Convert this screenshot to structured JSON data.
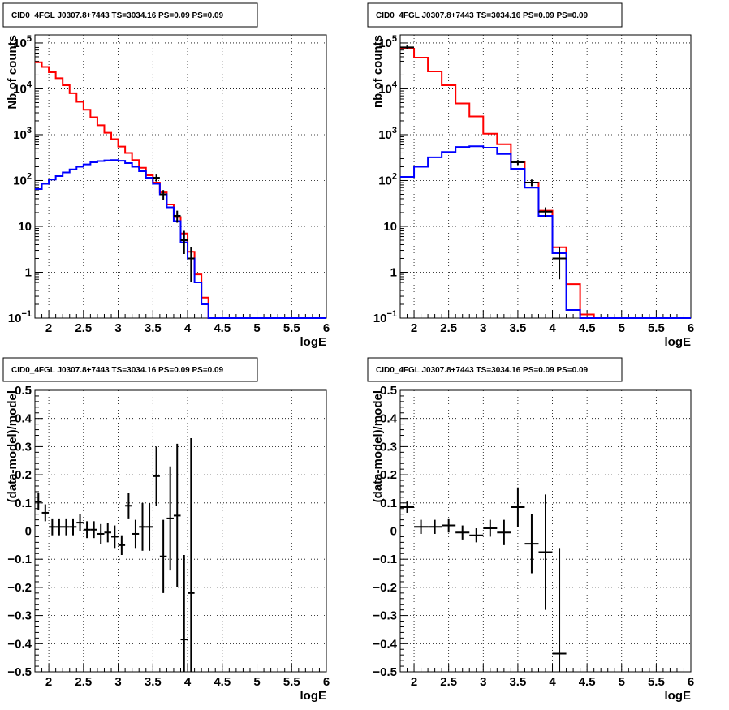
{
  "chart_data": [
    {
      "type": "line",
      "title": "CID0_4FGL J0307.8+7443 TS=3034.16 PS=0.09 PS=0.09",
      "xlabel": "logE",
      "ylabel": "Nb of counts",
      "xlim": [
        1.8,
        6.0
      ],
      "ylim": [
        0.1,
        150000
      ],
      "yscale": "log",
      "grid": true,
      "x_ticks": [
        "2",
        "2.5",
        "3",
        "3.5",
        "4",
        "4.5",
        "5",
        "5.5",
        "6"
      ],
      "y_ticks": [
        {
          "v": 0.1,
          "base": "10",
          "exp": "−1"
        },
        {
          "v": 1,
          "label": "1"
        },
        {
          "v": 10,
          "label": "10"
        },
        {
          "v": 100,
          "base": "10",
          "exp": "2"
        },
        {
          "v": 1000,
          "base": "10",
          "exp": "3"
        },
        {
          "v": 10000,
          "base": "10",
          "exp": "4"
        },
        {
          "v": 100000,
          "base": "10",
          "exp": "5"
        }
      ],
      "bin_edges": [
        1.8,
        1.9,
        2.0,
        2.1,
        2.2,
        2.3,
        2.4,
        2.5,
        2.6,
        2.7,
        2.8,
        2.9,
        3.0,
        3.1,
        3.2,
        3.3,
        3.4,
        3.5,
        3.6,
        3.7,
        3.8,
        3.9,
        4.0,
        4.1,
        4.2,
        4.3,
        4.4,
        4.5,
        4.6,
        4.7,
        4.8,
        4.9,
        5.0,
        5.1,
        5.2,
        5.3,
        5.4,
        5.5,
        5.6,
        5.7,
        5.8,
        5.9,
        6.0
      ],
      "series": [
        {
          "color": "#ff0000",
          "values": [
            38000,
            30000,
            23000,
            17000,
            12000,
            8000,
            5200,
            3500,
            2400,
            1600,
            1100,
            800,
            550,
            400,
            280,
            190,
            130,
            90,
            55,
            30,
            16,
            7,
            2.8,
            0.9,
            0.28,
            0.1,
            0.1,
            0.1,
            0.1,
            0.1,
            0.1,
            0.1,
            0.1,
            0.1,
            0.1,
            0.1,
            0.1,
            0.1,
            0.1,
            0.1,
            0.1,
            0.1
          ]
        },
        {
          "color": "#0000ff",
          "values": [
            65,
            85,
            105,
            125,
            150,
            175,
            200,
            225,
            250,
            265,
            275,
            280,
            270,
            240,
            200,
            160,
            115,
            85,
            50,
            26,
            13,
            4.5,
            2.0,
            0.6,
            0.2,
            0.1,
            0.1,
            0.1,
            0.1,
            0.1,
            0.1,
            0.1,
            0.1,
            0.1,
            0.1,
            0.1,
            0.1,
            0.1,
            0.1,
            0.1,
            0.1,
            0.1
          ]
        }
      ],
      "points": [
        {
          "x": 3.55,
          "y": 115,
          "lo": 95,
          "hi": 135
        },
        {
          "x": 3.65,
          "y": 50,
          "lo": 38,
          "hi": 62
        },
        {
          "x": 3.85,
          "y": 17,
          "lo": 12,
          "hi": 22
        },
        {
          "x": 3.95,
          "y": 5.0,
          "lo": 2.5,
          "hi": 8
        },
        {
          "x": 4.05,
          "y": 2.0,
          "lo": 0.6,
          "hi": 3.5
        }
      ]
    },
    {
      "type": "line",
      "title": "CID0_4FGL J0307.8+7443 TS=3034.16 PS=0.09 PS=0.09",
      "xlabel": "logE",
      "ylabel": "nb of counts",
      "xlim": [
        1.8,
        6.0
      ],
      "ylim": [
        0.1,
        150000
      ],
      "yscale": "log",
      "grid": true,
      "x_ticks": [
        "2",
        "2.5",
        "3",
        "3.5",
        "4",
        "4.5",
        "5",
        "5.5",
        "6"
      ],
      "y_ticks": [
        {
          "v": 0.1,
          "base": "10",
          "exp": "−1"
        },
        {
          "v": 1,
          "label": "1"
        },
        {
          "v": 10,
          "label": "10"
        },
        {
          "v": 100,
          "base": "10",
          "exp": "2"
        },
        {
          "v": 1000,
          "base": "10",
          "exp": "3"
        },
        {
          "v": 10000,
          "base": "10",
          "exp": "4"
        },
        {
          "v": 100000,
          "base": "10",
          "exp": "5"
        }
      ],
      "bin_edges": [
        1.8,
        2.0,
        2.2,
        2.4,
        2.6,
        2.8,
        3.0,
        3.2,
        3.4,
        3.6,
        3.8,
        4.0,
        4.2,
        4.4,
        4.6,
        4.8,
        5.0,
        5.2,
        5.4,
        5.6,
        5.8,
        6.0
      ],
      "series": [
        {
          "color": "#ff0000",
          "values": [
            75000,
            48000,
            24000,
            12000,
            4800,
            2500,
            1050,
            620,
            250,
            90,
            22,
            3.5,
            0.55,
            0.12,
            0.1,
            0.1,
            0.1,
            0.1,
            0.1,
            0.1,
            0.1
          ]
        },
        {
          "color": "#0000ff",
          "values": [
            120,
            200,
            320,
            420,
            540,
            560,
            520,
            380,
            180,
            70,
            17,
            2.6,
            0.15,
            0.1,
            0.1,
            0.1,
            0.1,
            0.1,
            0.1,
            0.1,
            0.1
          ]
        }
      ],
      "points": [
        {
          "x": 1.9,
          "y": 80000,
          "lo": 72000,
          "hi": 88000
        },
        {
          "x": 3.5,
          "y": 250,
          "lo": 220,
          "hi": 280
        },
        {
          "x": 3.7,
          "y": 90,
          "lo": 75,
          "hi": 105
        },
        {
          "x": 3.9,
          "y": 21,
          "lo": 16,
          "hi": 26
        },
        {
          "x": 4.1,
          "y": 2.0,
          "lo": 0.7,
          "hi": 3.5
        }
      ]
    },
    {
      "type": "scatter",
      "title": "CID0_4FGL J0307.8+7443 TS=3034.16 PS=0.09 PS=0.09",
      "xlabel": "logE",
      "ylabel": "(data-model)/model",
      "xlim": [
        1.8,
        6.0
      ],
      "ylim": [
        -0.5,
        0.5
      ],
      "yscale": "linear",
      "grid": true,
      "x_ticks": [
        "2",
        "2.5",
        "3",
        "3.5",
        "4",
        "4.5",
        "5",
        "5.5",
        "6"
      ],
      "y_ticks": [
        {
          "v": -0.5,
          "label": "−0.5"
        },
        {
          "v": -0.4,
          "label": "−0.4"
        },
        {
          "v": -0.3,
          "label": "−0.3"
        },
        {
          "v": -0.2,
          "label": "−0.2"
        },
        {
          "v": -0.1,
          "label": "−0.1"
        },
        {
          "v": 0,
          "label": "0"
        },
        {
          "v": 0.1,
          "label": "0.1"
        },
        {
          "v": 0.2,
          "label": "0.2"
        },
        {
          "v": 0.3,
          "label": "0.3"
        },
        {
          "v": 0.4,
          "label": "0.4"
        },
        {
          "v": 0.5,
          "label": "0.5"
        }
      ],
      "xerr": 0.05,
      "points": [
        {
          "x": 1.85,
          "y": 0.105,
          "e": 0.03
        },
        {
          "x": 1.95,
          "y": 0.065,
          "e": 0.03
        },
        {
          "x": 2.05,
          "y": 0.015,
          "e": 0.03
        },
        {
          "x": 2.15,
          "y": 0.015,
          "e": 0.03
        },
        {
          "x": 2.25,
          "y": 0.015,
          "e": 0.03
        },
        {
          "x": 2.35,
          "y": 0.015,
          "e": 0.03
        },
        {
          "x": 2.45,
          "y": 0.03,
          "e": 0.03
        },
        {
          "x": 2.55,
          "y": 0.005,
          "e": 0.03
        },
        {
          "x": 2.65,
          "y": 0.005,
          "e": 0.03
        },
        {
          "x": 2.75,
          "y": -0.01,
          "e": 0.035
        },
        {
          "x": 2.85,
          "y": -0.005,
          "e": 0.035
        },
        {
          "x": 2.95,
          "y": -0.02,
          "e": 0.04
        },
        {
          "x": 3.05,
          "y": -0.05,
          "e": 0.035
        },
        {
          "x": 3.15,
          "y": 0.09,
          "e": 0.045
        },
        {
          "x": 3.25,
          "y": -0.01,
          "e": 0.05
        },
        {
          "x": 3.35,
          "y": 0.015,
          "e": 0.085
        },
        {
          "x": 3.45,
          "y": 0.015,
          "e": 0.085
        },
        {
          "x": 3.55,
          "y": 0.195,
          "e": 0.105
        },
        {
          "x": 3.65,
          "y": -0.09,
          "e": 0.13
        },
        {
          "x": 3.75,
          "y": 0.045,
          "e": 0.185
        },
        {
          "x": 3.85,
          "y": 0.055,
          "e": 0.255
        },
        {
          "x": 3.95,
          "y": -0.385,
          "e": 0.3
        },
        {
          "x": 4.05,
          "y": -0.22,
          "e": 0.55
        }
      ]
    },
    {
      "type": "scatter",
      "title": "CID0_4FGL J0307.8+7443 TS=3034.16 PS=0.09 PS=0.09",
      "xlabel": "logE",
      "ylabel": "(data-model)/model",
      "xlim": [
        1.8,
        6.0
      ],
      "ylim": [
        -0.5,
        0.5
      ],
      "yscale": "linear",
      "grid": true,
      "x_ticks": [
        "2",
        "2.5",
        "3",
        "3.5",
        "4",
        "4.5",
        "5",
        "5.5",
        "6"
      ],
      "y_ticks": [
        {
          "v": -0.5,
          "label": "−0.5"
        },
        {
          "v": -0.4,
          "label": "−0.4"
        },
        {
          "v": -0.3,
          "label": "−0.3"
        },
        {
          "v": -0.2,
          "label": "−0.2"
        },
        {
          "v": -0.1,
          "label": "−0.1"
        },
        {
          "v": 0,
          "label": "0"
        },
        {
          "v": 0.1,
          "label": "0.1"
        },
        {
          "v": 0.2,
          "label": "0.2"
        },
        {
          "v": 0.3,
          "label": "0.3"
        },
        {
          "v": 0.4,
          "label": "0.4"
        },
        {
          "v": 0.5,
          "label": "0.5"
        }
      ],
      "xerr": 0.1,
      "points": [
        {
          "x": 1.9,
          "y": 0.085,
          "e": 0.02
        },
        {
          "x": 2.1,
          "y": 0.015,
          "e": 0.025
        },
        {
          "x": 2.3,
          "y": 0.015,
          "e": 0.025
        },
        {
          "x": 2.5,
          "y": 0.02,
          "e": 0.025
        },
        {
          "x": 2.7,
          "y": -0.005,
          "e": 0.025
        },
        {
          "x": 2.9,
          "y": -0.015,
          "e": 0.025
        },
        {
          "x": 3.1,
          "y": 0.01,
          "e": 0.03
        },
        {
          "x": 3.3,
          "y": -0.005,
          "e": 0.045
        },
        {
          "x": 3.5,
          "y": 0.085,
          "e": 0.07
        },
        {
          "x": 3.7,
          "y": -0.045,
          "e": 0.105
        },
        {
          "x": 3.9,
          "y": -0.075,
          "e": 0.205
        },
        {
          "x": 4.1,
          "y": -0.435,
          "e": 0.375
        }
      ]
    }
  ]
}
